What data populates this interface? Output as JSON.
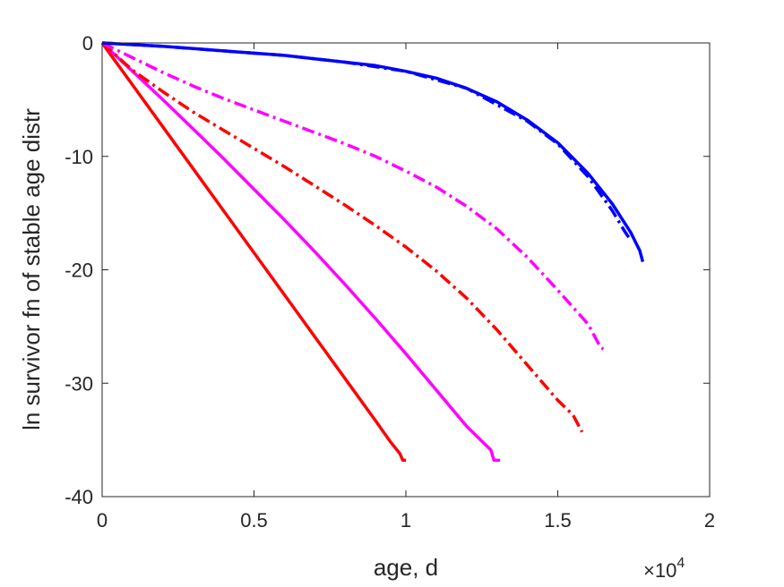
{
  "chart_data": {
    "type": "line",
    "xlabel": "age, d",
    "ylabel": "ln survivor fn of stable age distr",
    "x_multiplier": "×10",
    "x_multiplier_exponent": "4",
    "xlim": [
      0,
      20000
    ],
    "ylim": [
      -40,
      0
    ],
    "x_ticks": [
      0,
      5000,
      10000,
      15000,
      20000
    ],
    "x_tick_labels": [
      "0",
      "0.5",
      "1",
      "1.5",
      "2"
    ],
    "y_ticks": [
      0,
      -10,
      -20,
      -30,
      -40
    ],
    "y_tick_labels": [
      "0",
      "-10",
      "-20",
      "-30",
      "-40"
    ],
    "grid": false,
    "series": [
      {
        "color": "#ff0000",
        "style": "solid",
        "points": [
          [
            0,
            0
          ],
          [
            1000,
            -3.7
          ],
          [
            2000,
            -7.4
          ],
          [
            3000,
            -11.1
          ],
          [
            4000,
            -14.8
          ],
          [
            5000,
            -18.5
          ],
          [
            6000,
            -22.2
          ],
          [
            7000,
            -25.9
          ],
          [
            8000,
            -29.6
          ],
          [
            9000,
            -33.3
          ],
          [
            9500,
            -35.2
          ],
          [
            9800,
            -36.2
          ],
          [
            9900,
            -36.8
          ],
          [
            10000,
            -36.8
          ]
        ]
      },
      {
        "color": "#ff00ff",
        "style": "solid",
        "points": [
          [
            0,
            0
          ],
          [
            1000,
            -2.5
          ],
          [
            2000,
            -5.0
          ],
          [
            3000,
            -7.6
          ],
          [
            4000,
            -10.2
          ],
          [
            5000,
            -12.9
          ],
          [
            6000,
            -15.6
          ],
          [
            7000,
            -18.4
          ],
          [
            8000,
            -21.3
          ],
          [
            9000,
            -24.3
          ],
          [
            10000,
            -27.4
          ],
          [
            11000,
            -30.6
          ],
          [
            12000,
            -33.8
          ],
          [
            12800,
            -35.9
          ],
          [
            12900,
            -36.8
          ],
          [
            13100,
            -36.8
          ]
        ]
      },
      {
        "color": "#ff0000",
        "style": "dashdot",
        "points": [
          [
            0,
            0
          ],
          [
            1000,
            -2.4
          ],
          [
            2000,
            -4.3
          ],
          [
            3000,
            -6.1
          ],
          [
            4000,
            -7.7
          ],
          [
            5000,
            -9.3
          ],
          [
            6000,
            -10.9
          ],
          [
            7000,
            -12.6
          ],
          [
            8000,
            -14.3
          ],
          [
            9000,
            -16.1
          ],
          [
            10000,
            -18.0
          ],
          [
            11000,
            -20.1
          ],
          [
            12000,
            -22.5
          ],
          [
            13000,
            -25.3
          ],
          [
            14000,
            -28.4
          ],
          [
            15000,
            -31.5
          ],
          [
            15500,
            -32.8
          ],
          [
            15800,
            -34.3
          ]
        ]
      },
      {
        "color": "#ff00ff",
        "style": "dashdot",
        "points": [
          [
            0,
            0
          ],
          [
            1000,
            -1.3
          ],
          [
            2000,
            -2.6
          ],
          [
            3000,
            -3.8
          ],
          [
            4000,
            -4.9
          ],
          [
            5000,
            -5.9
          ],
          [
            6000,
            -6.9
          ],
          [
            7000,
            -7.9
          ],
          [
            8000,
            -8.9
          ],
          [
            9000,
            -10.0
          ],
          [
            10000,
            -11.3
          ],
          [
            11000,
            -12.7
          ],
          [
            12000,
            -14.4
          ],
          [
            13000,
            -16.4
          ],
          [
            14000,
            -18.9
          ],
          [
            15000,
            -21.8
          ],
          [
            16000,
            -24.8
          ],
          [
            16400,
            -26.8
          ],
          [
            16500,
            -27.0
          ]
        ]
      },
      {
        "color": "#0000ff",
        "style": "solid",
        "points": [
          [
            0,
            0
          ],
          [
            1000,
            -0.15
          ],
          [
            2000,
            -0.3
          ],
          [
            3000,
            -0.5
          ],
          [
            4000,
            -0.7
          ],
          [
            5000,
            -0.9
          ],
          [
            6000,
            -1.1
          ],
          [
            7000,
            -1.4
          ],
          [
            8000,
            -1.7
          ],
          [
            9000,
            -2.0
          ],
          [
            10000,
            -2.5
          ],
          [
            11000,
            -3.1
          ],
          [
            12000,
            -4.0
          ],
          [
            13000,
            -5.2
          ],
          [
            14000,
            -6.8
          ],
          [
            15000,
            -8.8
          ],
          [
            16000,
            -11.5
          ],
          [
            16800,
            -14.2
          ],
          [
            17400,
            -16.7
          ],
          [
            17700,
            -18.3
          ],
          [
            17800,
            -19.3
          ]
        ]
      },
      {
        "color": "#0000ff",
        "style": "dashdot",
        "points": [
          [
            0,
            0
          ],
          [
            2000,
            -0.3
          ],
          [
            4000,
            -0.7
          ],
          [
            6000,
            -1.1
          ],
          [
            8000,
            -1.7
          ],
          [
            10000,
            -2.5
          ],
          [
            12000,
            -4.0
          ],
          [
            14000,
            -6.9
          ],
          [
            15000,
            -8.9
          ],
          [
            16000,
            -11.8
          ],
          [
            16800,
            -14.8
          ],
          [
            17200,
            -16.6
          ],
          [
            17400,
            -17.4
          ]
        ]
      }
    ]
  }
}
